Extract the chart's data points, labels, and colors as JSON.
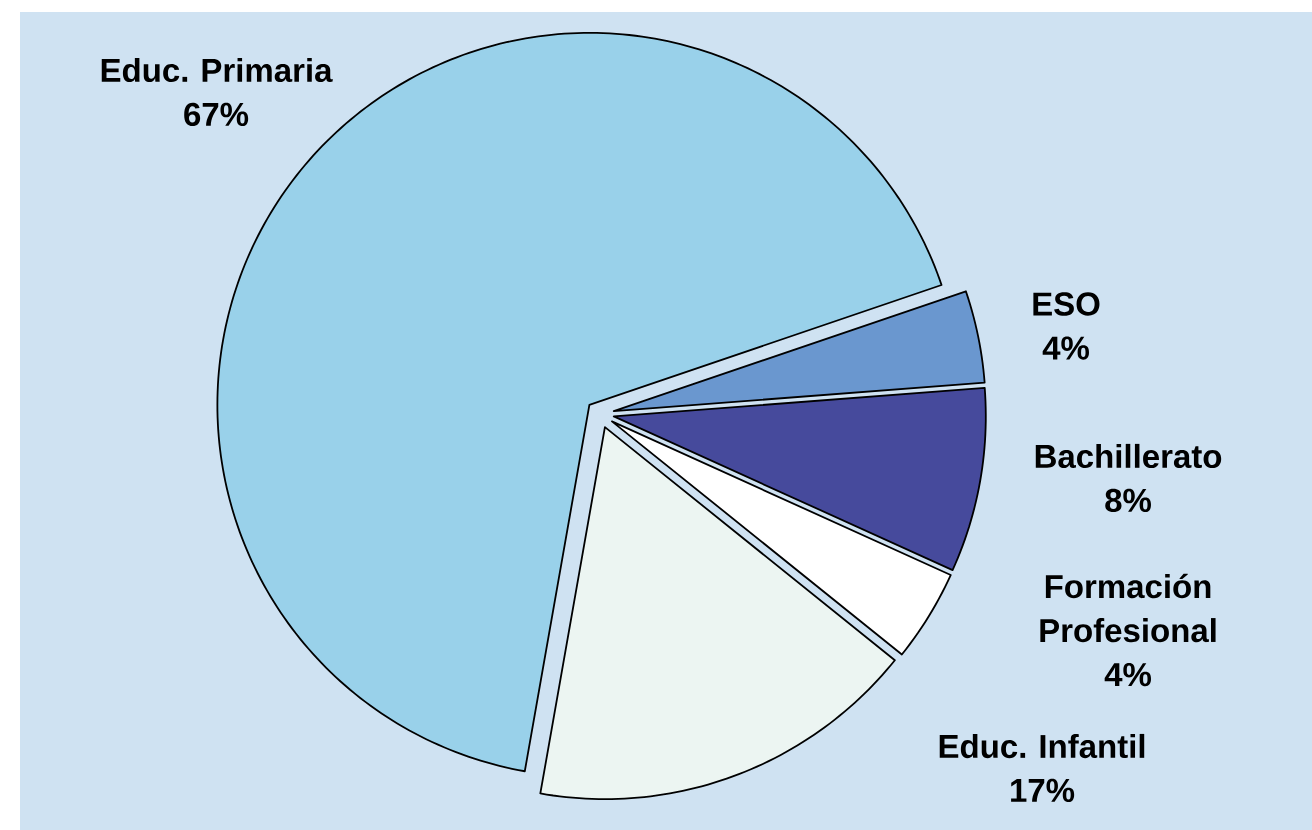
{
  "chart_data": {
    "type": "pie",
    "categories": [
      "Educ. Primaria",
      "ESO",
      "Bachillerato",
      "Formación Profesional",
      "Educ. Infantil"
    ],
    "values": [
      67,
      4,
      8,
      4,
      17
    ],
    "colors": [
      "#99d1ea",
      "#6a97cf",
      "#464a9c",
      "#ffffff",
      "#ecf5f2"
    ],
    "value_labels": [
      "67%",
      "4%",
      "8%",
      "4%",
      "17%"
    ]
  }
}
